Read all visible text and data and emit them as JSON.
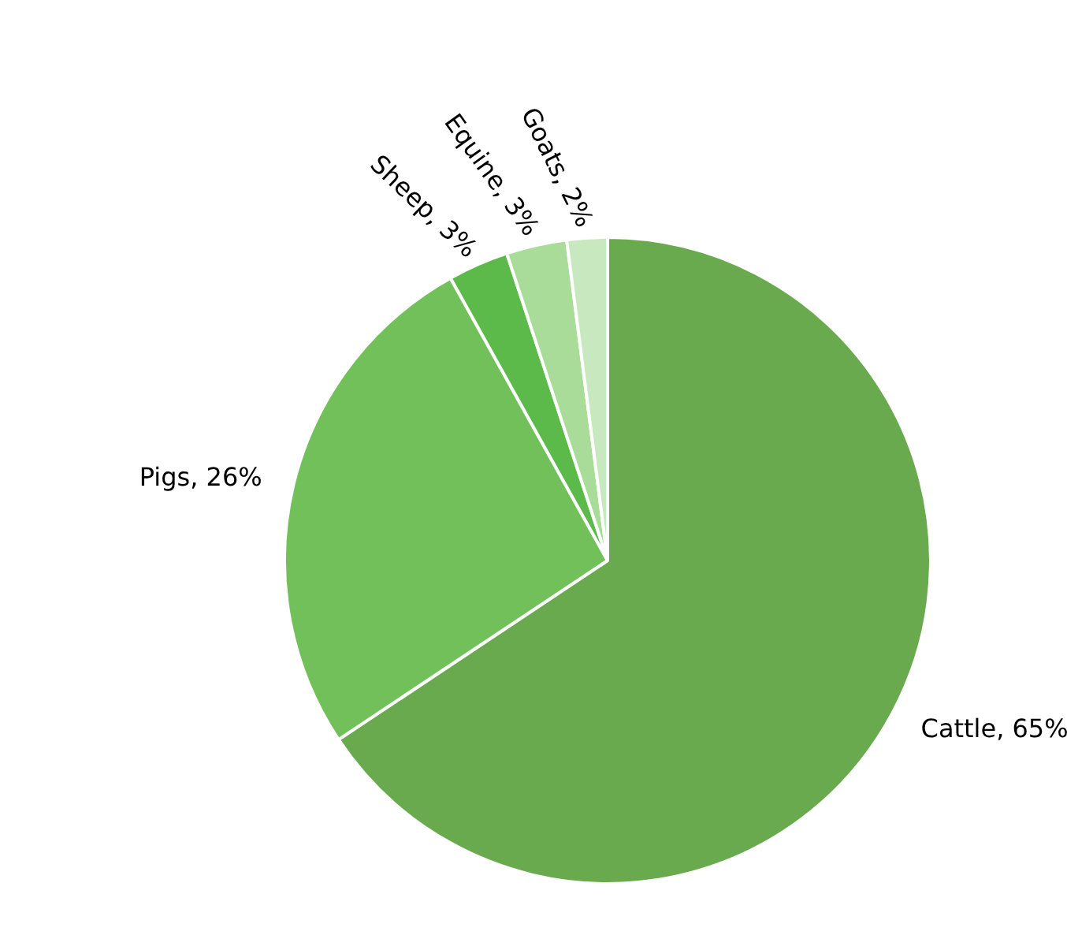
{
  "chart_data": {
    "type": "pie",
    "categories": [
      "Cattle",
      "Pigs",
      "Sheep",
      "Equine",
      "Goats"
    ],
    "values": [
      65,
      26,
      3,
      3,
      2
    ],
    "value_labels": [
      "65%",
      "26%",
      "3%",
      "3%",
      "2%"
    ],
    "colors": [
      "#6aaa4f",
      "#72c05a",
      "#5cba4a",
      "#a8dc98",
      "#c8e8c0"
    ]
  }
}
